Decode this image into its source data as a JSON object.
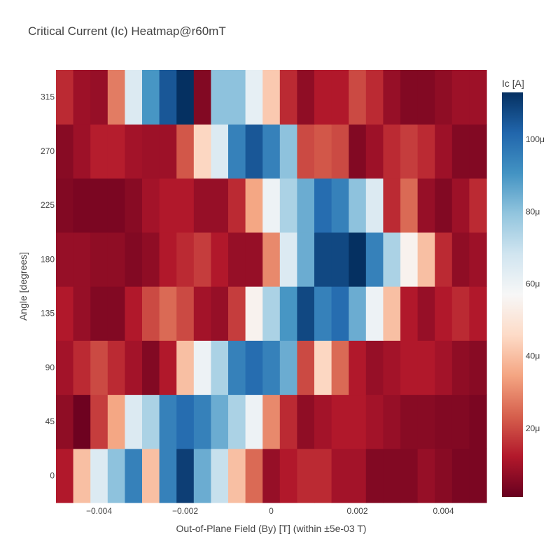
{
  "chart_data": {
    "type": "heatmap",
    "title": "Critical Current (Ic) Heatmap@r60mT",
    "xlabel": "Out-of-Plane Field (By) [T] (within ±5e-03 T)",
    "ylabel": "Angle [degrees]",
    "colorbar_title": "Ic [A]",
    "colorscale": "RdBu",
    "zlim": [
      1e-06,
      0.000113
    ],
    "xlim": [
      -0.005,
      0.005
    ],
    "ylim": [
      -22.5,
      337.5
    ],
    "x_ticks": [
      -0.004,
      -0.002,
      0,
      0.002,
      0.004
    ],
    "x_tick_labels": [
      "−0.004",
      "−0.002",
      "0",
      "0.002",
      "0.004"
    ],
    "y_ticks": [
      0,
      45,
      90,
      135,
      180,
      225,
      270,
      315
    ],
    "y_tick_labels": [
      "0",
      "45",
      "90",
      "135",
      "180",
      "225",
      "270",
      "315"
    ],
    "colorbar_ticks": [
      2e-05,
      4e-05,
      6e-05,
      8e-05,
      0.0001
    ],
    "colorbar_tick_labels": [
      "20μ",
      "40μ",
      "60μ",
      "80μ",
      "100μ"
    ],
    "x": [
      -0.0048,
      -0.0044,
      -0.004,
      -0.0036,
      -0.0032,
      -0.0028,
      -0.0024,
      -0.002,
      -0.0016,
      -0.0012,
      -0.0008,
      -0.0004,
      0.0,
      0.0004,
      0.0008,
      0.0012,
      0.0016,
      0.002,
      0.0024,
      0.0028,
      0.0032,
      0.0036,
      0.004,
      0.0044,
      0.0048
    ],
    "y": [
      0,
      45,
      90,
      135,
      180,
      225,
      270,
      315
    ],
    "z": [
      [
        12,
        40,
        65,
        80,
        95,
        40,
        95,
        110,
        85,
        70,
        40,
        25,
        8,
        12,
        15,
        15,
        10,
        10,
        5,
        5,
        5,
        8,
        6,
        4,
        4
      ],
      [
        7,
        2,
        18,
        35,
        65,
        75,
        95,
        100,
        95,
        85,
        75,
        60,
        30,
        15,
        7,
        10,
        12,
        12,
        10,
        8,
        6,
        6,
        5,
        5,
        4
      ],
      [
        10,
        15,
        20,
        15,
        10,
        5,
        12,
        40,
        60,
        75,
        95,
        100,
        95,
        85,
        20,
        45,
        25,
        12,
        8,
        10,
        12,
        12,
        10,
        7,
        6
      ],
      [
        12,
        8,
        5,
        5,
        12,
        20,
        25,
        20,
        10,
        8,
        18,
        55,
        75,
        90,
        108,
        95,
        100,
        85,
        60,
        40,
        12,
        8,
        12,
        15,
        12
      ],
      [
        8,
        8,
        7,
        7,
        5,
        7,
        12,
        15,
        18,
        12,
        8,
        8,
        30,
        65,
        85,
        108,
        108,
        115,
        95,
        75,
        55,
        40,
        15,
        7,
        9
      ],
      [
        5,
        4,
        4,
        4,
        6,
        10,
        12,
        12,
        8,
        8,
        15,
        35,
        60,
        75,
        85,
        100,
        95,
        80,
        65,
        15,
        25,
        8,
        5,
        9,
        15
      ],
      [
        6,
        9,
        13,
        13,
        10,
        9,
        9,
        22,
        45,
        65,
        95,
        105,
        95,
        80,
        20,
        22,
        20,
        5,
        9,
        15,
        18,
        15,
        9,
        5,
        5
      ],
      [
        15,
        9,
        8,
        28,
        65,
        90,
        105,
        115,
        5,
        80,
        80,
        62,
        42,
        15,
        7,
        12,
        12,
        20,
        15,
        8,
        5,
        5,
        7,
        9,
        9
      ]
    ]
  }
}
